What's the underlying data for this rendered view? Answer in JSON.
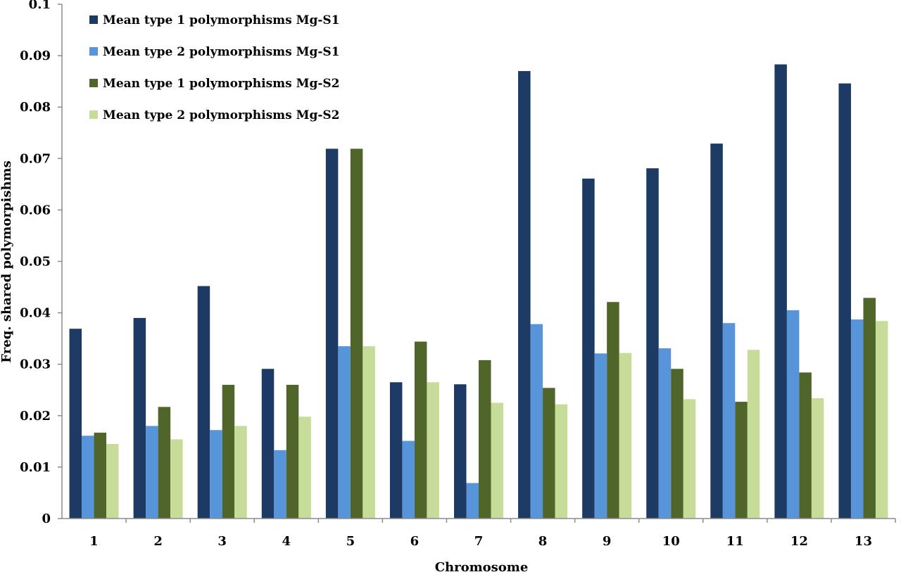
{
  "chart_data": {
    "type": "bar",
    "xlabel": "Chromosome",
    "ylabel": "Freq. shared polymorpishms",
    "ylim": [
      0,
      0.1
    ],
    "yticks": [
      "0",
      "0.01",
      "0.02",
      "0.03",
      "0.04",
      "0.05",
      "0.06",
      "0.07",
      "0.08",
      "0.09",
      "0.1"
    ],
    "categories": [
      "1",
      "2",
      "3",
      "4",
      "5",
      "6",
      "7",
      "8",
      "9",
      "10",
      "11",
      "12",
      "13"
    ],
    "legend_position": "top-left",
    "grid": false,
    "series": [
      {
        "name": "Mean type 1 polymorphisms Mg-S1",
        "color": "#1c3a63",
        "values": [
          0.0369,
          0.039,
          0.0452,
          0.0291,
          0.0719,
          0.0265,
          0.0261,
          0.087,
          0.0661,
          0.0681,
          0.0729,
          0.0883,
          0.0846
        ]
      },
      {
        "name": "Mean type 2 polymorphisms Mg-S1",
        "color": "#5794d9",
        "values": [
          0.0161,
          0.018,
          0.0172,
          0.0133,
          0.0335,
          0.0151,
          0.0069,
          0.0378,
          0.0321,
          0.0331,
          0.038,
          0.0405,
          0.0387
        ]
      },
      {
        "name": "Mean type 1 polymorphisms Mg-S2",
        "color": "#4f6529",
        "values": [
          0.0167,
          0.0217,
          0.026,
          0.026,
          0.0719,
          0.0344,
          0.0308,
          0.0254,
          0.0421,
          0.0291,
          0.0227,
          0.0284,
          0.0429
        ]
      },
      {
        "name": "Mean type 2 polymorphisms Mg-S2",
        "color": "#c8dc9a",
        "values": [
          0.0145,
          0.0154,
          0.018,
          0.0198,
          0.0335,
          0.0265,
          0.0225,
          0.0222,
          0.0322,
          0.0232,
          0.0328,
          0.0234,
          0.0384
        ]
      }
    ]
  }
}
